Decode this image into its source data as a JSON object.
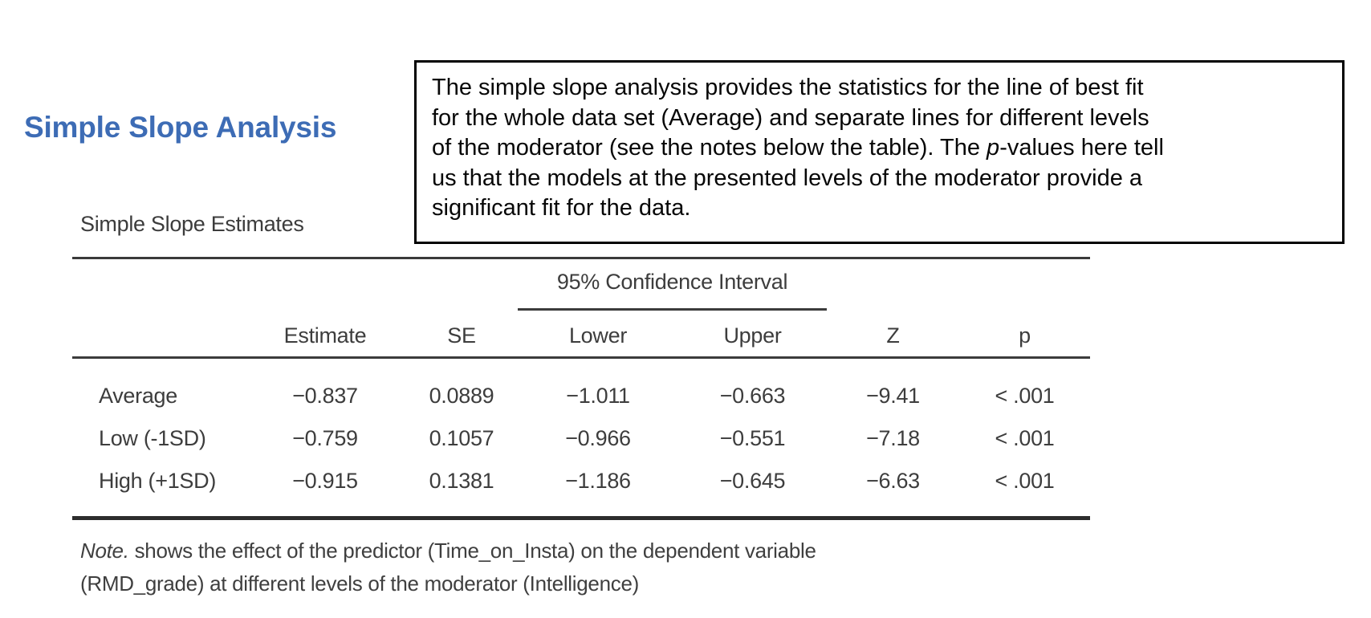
{
  "page": {
    "heading": "Simple Slope Analysis",
    "accent_color": "#3d6cb5"
  },
  "annotation": {
    "lines": [
      "The simple slope analysis provides the statistics for the line of best fit",
      "for the whole data set (Average) and separate lines for different levels",
      {
        "pre": "of the moderator (see the notes below the table). The ",
        "italic": "p",
        "post": "-values here tell"
      },
      "us that the models at the presented levels of the moderator provide a",
      "significant fit for the data."
    ]
  },
  "table": {
    "title": "Simple Slope Estimates",
    "spanner": "95% Confidence Interval",
    "columns": [
      "",
      "Estimate",
      "SE",
      "Lower",
      "Upper",
      "Z",
      "p"
    ],
    "rows": [
      {
        "label": "Average",
        "estimate": "−0.837",
        "se": "0.0889",
        "lower": "−1.011",
        "upper": "−0.663",
        "z": "−9.41",
        "p": "< .001"
      },
      {
        "label": "Low (-1SD)",
        "estimate": "−0.759",
        "se": "0.1057",
        "lower": "−0.966",
        "upper": "−0.551",
        "z": "−7.18",
        "p": "< .001"
      },
      {
        "label": "High (+1SD)",
        "estimate": "−0.915",
        "se": "0.1381",
        "lower": "−1.186",
        "upper": "−0.645",
        "z": "−6.63",
        "p": "< .001"
      }
    ],
    "note": {
      "prefix": "Note.",
      "line1": " shows the effect of the predictor (Time_on_Insta) on the dependent variable",
      "line2": "(RMD_grade) at different levels of the moderator (Intelligence)"
    }
  }
}
